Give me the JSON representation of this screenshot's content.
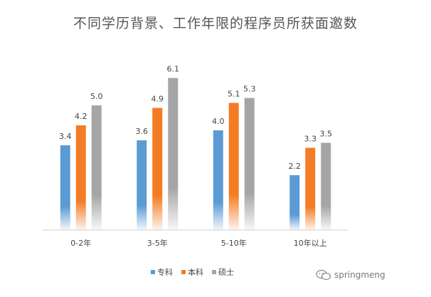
{
  "chart_data": {
    "type": "bar",
    "title": "不同学历背景、工作年限的程序员所获面邀数",
    "categories": [
      "0-2年",
      "3-5年",
      "5-10年",
      "10年以上"
    ],
    "series": [
      {
        "name": "专科",
        "values": [
          3.4,
          3.6,
          4.0,
          2.2
        ],
        "color": "#5b9bd5"
      },
      {
        "name": "本科",
        "values": [
          4.2,
          4.9,
          5.1,
          3.3
        ],
        "color": "#f47c24"
      },
      {
        "name": "硕士",
        "values": [
          5.0,
          6.1,
          5.3,
          3.5
        ],
        "color": "#a5a5a5"
      }
    ],
    "value_labels": [
      [
        "3.4",
        "3.6",
        "4.0",
        "2.2"
      ],
      [
        "4.2",
        "4.9",
        "5.1",
        "3.3"
      ],
      [
        "5.0",
        "6.1",
        "5.3",
        "3.5"
      ]
    ],
    "ylim": [
      0,
      7
    ],
    "grid": false,
    "legend_position": "bottom"
  },
  "legend": {
    "items": [
      {
        "label": "专科",
        "color": "#5b9bd5"
      },
      {
        "label": "本科",
        "color": "#f47c24"
      },
      {
        "label": "硕士",
        "color": "#a5a5a5"
      }
    ]
  },
  "watermark": {
    "text": "springmeng",
    "icon": "wechat-icon"
  }
}
